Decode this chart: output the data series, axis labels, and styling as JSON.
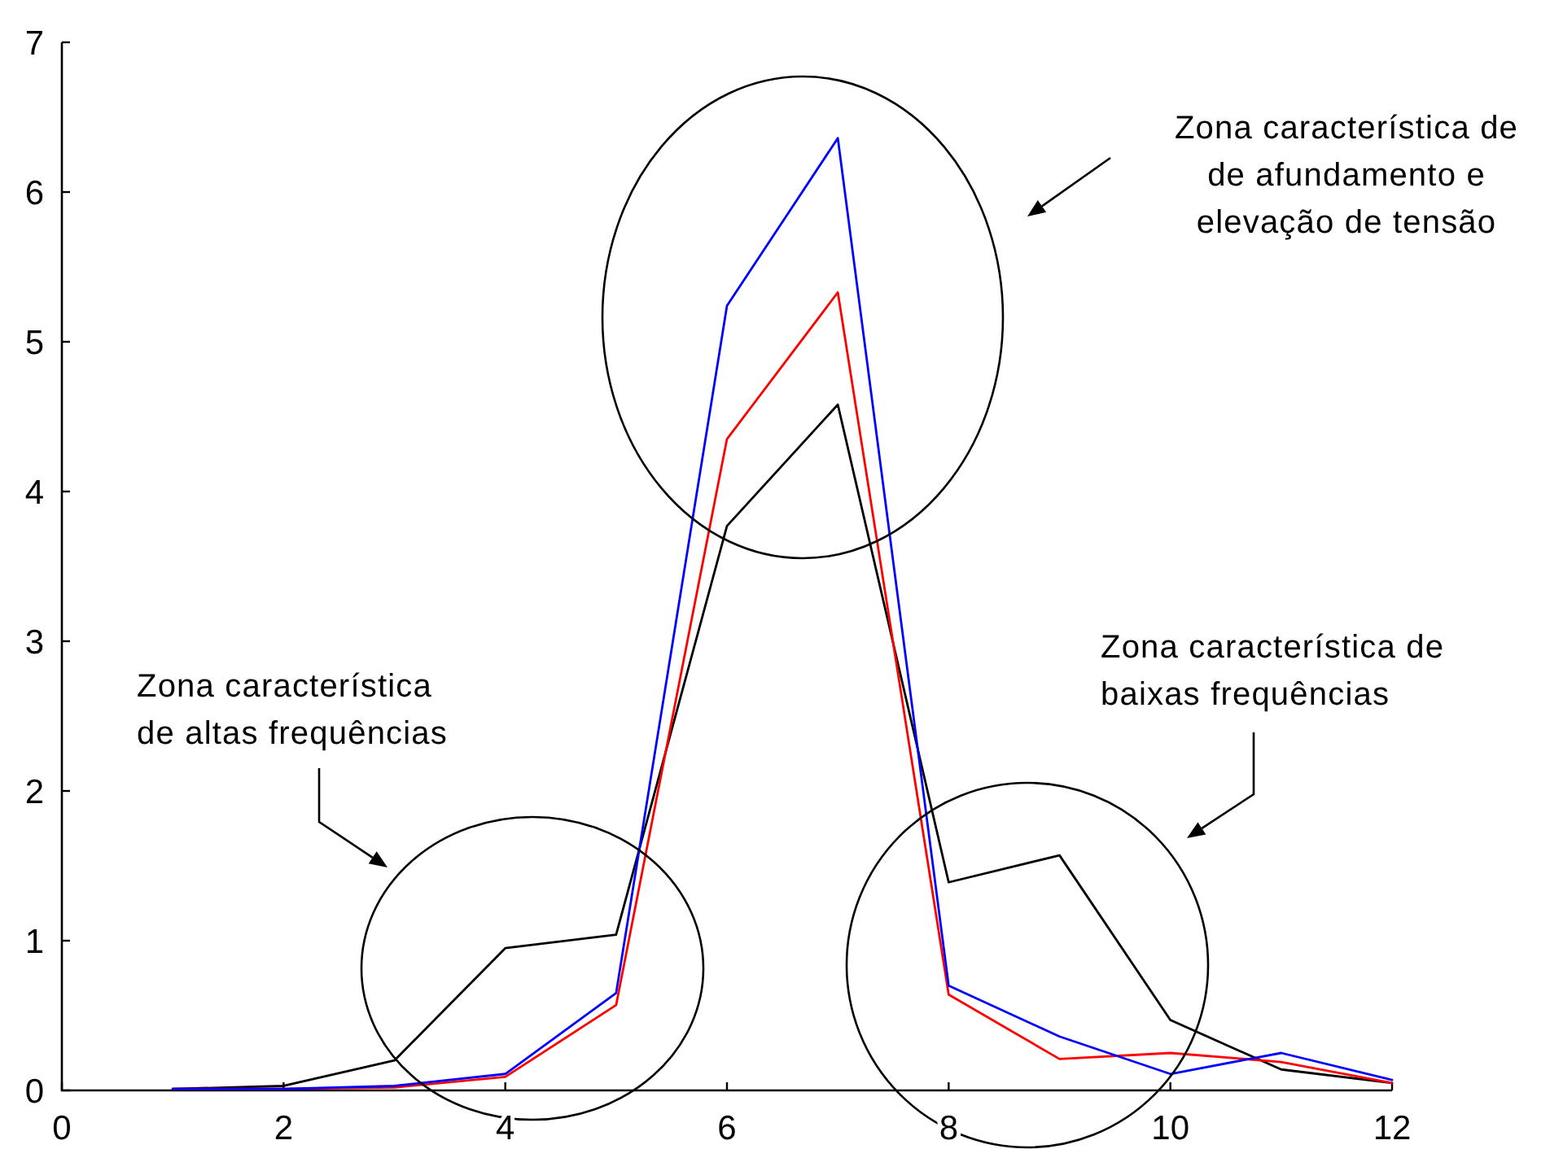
{
  "chart_data": {
    "type": "line",
    "x": [
      1,
      2,
      3,
      4,
      5,
      6,
      7,
      8,
      9,
      10,
      11,
      12
    ],
    "series": [
      {
        "color": "#000000",
        "values": [
          0.01,
          0.03,
          0.2,
          0.95,
          1.04,
          3.77,
          4.58,
          1.39,
          1.57,
          0.47,
          0.14,
          0.05
        ]
      },
      {
        "color": "#ff0000",
        "values": [
          0.01,
          0.01,
          0.02,
          0.09,
          0.57,
          4.35,
          5.33,
          0.64,
          0.21,
          0.25,
          0.19,
          0.05
        ]
      },
      {
        "color": "#0000ff",
        "values": [
          0.01,
          0.01,
          0.03,
          0.11,
          0.65,
          5.24,
          6.36,
          0.7,
          0.36,
          0.11,
          0.25,
          0.07
        ]
      }
    ],
    "xlim": [
      0,
      12
    ],
    "ylim": [
      0,
      7
    ],
    "xticks": [
      0,
      2,
      4,
      6,
      8,
      10,
      12
    ],
    "yticks": [
      0,
      1,
      2,
      3,
      4,
      5,
      6,
      7
    ],
    "line_style": "solid",
    "annotations": [
      "Zona característica de\nde afundamento e\nelevação de tensão",
      "Zona característica de\nbaixas frequências",
      "Zona característica\nde altas frequências"
    ]
  }
}
